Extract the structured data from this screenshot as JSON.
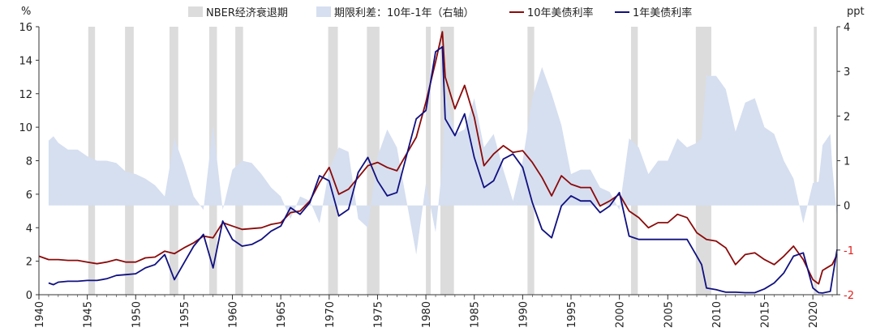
{
  "chart_data": {
    "type": "line",
    "left_axis_label": "%",
    "right_axis_label": "ppt",
    "xlim": [
      1940,
      2022.5
    ],
    "ylim_left": [
      0,
      16
    ],
    "ylim_right": [
      -2,
      4
    ],
    "x_ticks": [
      1940,
      1945,
      1950,
      1955,
      1960,
      1965,
      1970,
      1975,
      1980,
      1985,
      1990,
      1995,
      2000,
      2005,
      2010,
      2015,
      2020
    ],
    "y_ticks_left": [
      0,
      2,
      4,
      6,
      8,
      10,
      12,
      14,
      16
    ],
    "y_ticks_right": [
      -2,
      -1,
      0,
      1,
      2,
      3,
      4
    ],
    "colors": {
      "recession": "#dcdcdc",
      "spread": "#d6dff0",
      "ten_year": "#8b0a0a",
      "one_year": "#101080",
      "negative_tick": "#e0201e"
    },
    "legend": [
      {
        "label": "NBER经济衰退期",
        "kind": "recession"
      },
      {
        "label": "期限利差：10年-1年（右轴）",
        "kind": "spread"
      },
      {
        "label": "10年美债利率",
        "kind": "ten_year"
      },
      {
        "label": "1年美债利率",
        "kind": "one_year"
      }
    ],
    "recessions": [
      [
        1945.1,
        1945.8
      ],
      [
        1948.9,
        1949.8
      ],
      [
        1953.5,
        1954.4
      ],
      [
        1957.6,
        1958.4
      ],
      [
        1960.3,
        1961.1
      ],
      [
        1969.9,
        1970.9
      ],
      [
        1973.9,
        1975.2
      ],
      [
        1980.0,
        1980.5
      ],
      [
        1981.5,
        1982.9
      ],
      [
        1990.5,
        1991.2
      ],
      [
        2001.2,
        2001.9
      ],
      [
        2007.9,
        2009.5
      ],
      [
        2020.1,
        2020.4
      ]
    ],
    "series": [
      {
        "name": "10年美债利率",
        "axis": "left",
        "x": [
          1940.0,
          1941,
          1942,
          1943,
          1944,
          1945,
          1946,
          1947,
          1948,
          1949,
          1950,
          1951,
          1952,
          1953,
          1954,
          1955,
          1956,
          1957,
          1958,
          1959,
          1960,
          1961,
          1962,
          1963,
          1964,
          1965,
          1966,
          1967,
          1968,
          1969,
          1970,
          1971,
          1972,
          1973,
          1974,
          1975,
          1976,
          1977,
          1978,
          1979,
          1980,
          1981,
          1981.7,
          1982,
          1983,
          1984,
          1985,
          1986,
          1987,
          1988,
          1989,
          1990,
          1991,
          1992,
          1993,
          1994,
          1995,
          1996,
          1997,
          1998,
          1999,
          2000,
          2001,
          2002,
          2003,
          2004,
          2005,
          2006,
          2007,
          2008,
          2009,
          2010,
          2011,
          2012,
          2013,
          2014,
          2015,
          2016,
          2017,
          2018,
          2019,
          2020,
          2020.6,
          2021,
          2022,
          2022.5
        ],
        "values": [
          2.3,
          2.1,
          2.1,
          2.05,
          2.05,
          1.95,
          1.85,
          1.95,
          2.1,
          1.95,
          1.95,
          2.2,
          2.25,
          2.6,
          2.45,
          2.8,
          3.1,
          3.5,
          3.4,
          4.3,
          4.1,
          3.9,
          3.95,
          4.0,
          4.2,
          4.3,
          4.9,
          5.0,
          5.6,
          6.7,
          7.6,
          6.0,
          6.3,
          7.0,
          7.7,
          7.9,
          7.6,
          7.4,
          8.4,
          9.4,
          11.5,
          13.9,
          15.7,
          13.0,
          11.1,
          12.5,
          10.6,
          7.7,
          8.4,
          8.9,
          8.5,
          8.6,
          7.9,
          7.0,
          5.9,
          7.1,
          6.6,
          6.4,
          6.4,
          5.3,
          5.6,
          6.0,
          5.0,
          4.6,
          4.0,
          4.3,
          4.3,
          4.8,
          4.6,
          3.7,
          3.3,
          3.2,
          2.8,
          1.8,
          2.4,
          2.5,
          2.1,
          1.8,
          2.3,
          2.9,
          2.1,
          0.9,
          0.65,
          1.45,
          1.8,
          2.4
        ]
      },
      {
        "name": "1年美债利率",
        "axis": "left",
        "x": [
          1941.0,
          1941.5,
          1942,
          1943,
          1944,
          1945,
          1946,
          1947,
          1948,
          1949,
          1950,
          1951,
          1952,
          1953,
          1954,
          1955,
          1956,
          1957,
          1958,
          1959,
          1960,
          1961,
          1962,
          1963,
          1964,
          1965,
          1966,
          1967,
          1968,
          1969,
          1970,
          1971,
          1972,
          1973,
          1974,
          1975,
          1976,
          1977,
          1978,
          1979,
          1980,
          1981,
          1981.7,
          1982,
          1983,
          1984,
          1985,
          1986,
          1987,
          1988,
          1989,
          1990,
          1991,
          1992,
          1993,
          1994,
          1995,
          1996,
          1997,
          1998,
          1999,
          2000,
          2001,
          2002,
          2003,
          2004,
          2005,
          2006,
          2007,
          2008,
          2008.5,
          2009,
          2010,
          2011,
          2012,
          2013,
          2014,
          2015,
          2016,
          2017,
          2018,
          2019,
          2020,
          2020.6,
          2021,
          2021.8,
          2022,
          2022.5
        ],
        "values": [
          0.7,
          0.6,
          0.75,
          0.8,
          0.8,
          0.85,
          0.85,
          0.95,
          1.15,
          1.2,
          1.25,
          1.6,
          1.8,
          2.4,
          0.9,
          1.9,
          2.9,
          3.6,
          1.6,
          4.4,
          3.3,
          2.9,
          3.0,
          3.3,
          3.8,
          4.1,
          5.2,
          4.8,
          5.5,
          7.1,
          6.8,
          4.7,
          5.1,
          7.3,
          8.2,
          6.8,
          5.9,
          6.1,
          8.3,
          10.5,
          11.0,
          14.5,
          14.8,
          10.5,
          9.5,
          10.8,
          8.2,
          6.4,
          6.8,
          8.1,
          8.4,
          7.6,
          5.5,
          3.9,
          3.4,
          5.3,
          5.9,
          5.6,
          5.6,
          4.9,
          5.3,
          6.1,
          3.5,
          3.3,
          3.3,
          3.3,
          3.3,
          3.3,
          3.3,
          2.3,
          1.8,
          0.4,
          0.3,
          0.15,
          0.15,
          0.12,
          0.12,
          0.35,
          0.7,
          1.3,
          2.3,
          2.5,
          0.4,
          0.12,
          0.1,
          0.2,
          0.9,
          2.7
        ]
      },
      {
        "name": "期限利差：10年-1年（右轴）",
        "axis": "right",
        "x": [
          1941.0,
          1941.5,
          1942,
          1943,
          1944,
          1945,
          1946,
          1947,
          1948,
          1949,
          1950,
          1951,
          1952,
          1953,
          1954,
          1955,
          1956,
          1957,
          1958,
          1959,
          1960,
          1961,
          1962,
          1963,
          1964,
          1965,
          1966,
          1967,
          1968,
          1969,
          1970,
          1971,
          1972,
          1973,
          1974,
          1975,
          1976,
          1977,
          1978,
          1979,
          1980,
          1981,
          1981.7,
          1982,
          1983,
          1984,
          1985,
          1986,
          1987,
          1988,
          1989,
          1990,
          1991,
          1992,
          1993,
          1994,
          1995,
          1996,
          1997,
          1998,
          1999,
          2000,
          2001,
          2002,
          2003,
          2004,
          2005,
          2006,
          2007,
          2008,
          2008.5,
          2009,
          2010,
          2011,
          2012,
          2013,
          2014,
          2015,
          2016,
          2017,
          2018,
          2019,
          2020,
          2020.6,
          2021,
          2021.8,
          2022,
          2022.5
        ],
        "values": [
          1.45,
          1.55,
          1.4,
          1.25,
          1.25,
          1.1,
          1.0,
          1.0,
          0.95,
          0.75,
          0.7,
          0.6,
          0.45,
          0.2,
          1.5,
          0.9,
          0.2,
          -0.1,
          1.8,
          -0.1,
          0.8,
          1.0,
          0.95,
          0.7,
          0.4,
          0.2,
          -0.3,
          0.2,
          0.1,
          -0.4,
          0.8,
          1.3,
          1.2,
          -0.3,
          -0.5,
          1.1,
          1.7,
          1.3,
          0.1,
          -1.1,
          0.5,
          -0.6,
          0.9,
          2.5,
          1.6,
          1.7,
          2.4,
          1.3,
          1.6,
          0.8,
          0.1,
          1.0,
          2.4,
          3.1,
          2.5,
          1.8,
          0.7,
          0.8,
          0.8,
          0.4,
          0.3,
          -0.1,
          1.5,
          1.3,
          0.7,
          1.0,
          1.0,
          1.5,
          1.3,
          1.4,
          1.5,
          2.9,
          2.9,
          2.6,
          1.65,
          2.3,
          2.4,
          1.75,
          1.6,
          1.0,
          0.6,
          -0.4,
          0.5,
          0.53,
          1.35,
          1.6,
          0.9,
          -0.3
        ]
      }
    ]
  }
}
